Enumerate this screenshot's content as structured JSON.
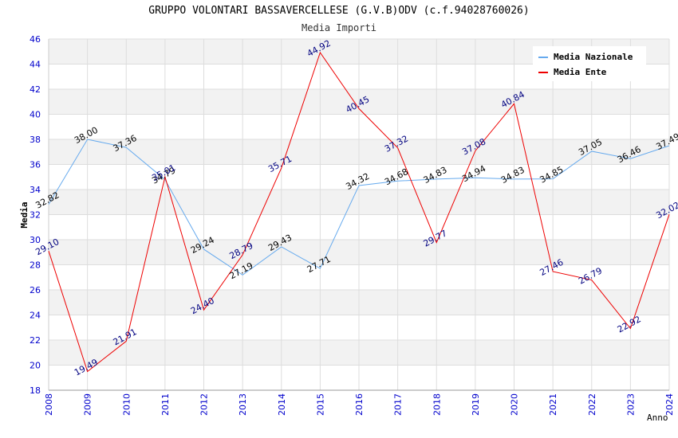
{
  "chart_data": {
    "type": "line",
    "title": "GRUPPO VOLONTARI BASSAVERCELLESE (G.V.B)ODV (c.f.94028760026)",
    "subtitle": "Media Importi",
    "xlabel": "Anno",
    "ylabel": "Media",
    "ylim": [
      18,
      46
    ],
    "yticks": [
      18,
      20,
      22,
      24,
      26,
      28,
      30,
      32,
      34,
      36,
      38,
      40,
      42,
      44,
      46
    ],
    "categories": [
      "2008",
      "2009",
      "2010",
      "2011",
      "2012",
      "2013",
      "2014",
      "2015",
      "2016",
      "2017",
      "2018",
      "2019",
      "2020",
      "2021",
      "2022",
      "2023",
      "2024"
    ],
    "grid": true,
    "legend_position": "top-right",
    "series": [
      {
        "name": "Media Nazionale",
        "color": "#66aaee",
        "values": [
          32.82,
          38.0,
          37.36,
          34.79,
          29.24,
          27.19,
          29.43,
          27.71,
          34.32,
          34.68,
          34.83,
          34.94,
          34.83,
          34.85,
          37.05,
          36.46,
          37.49
        ],
        "labels": [
          "32.82",
          "38.00",
          "37.36",
          "34.79",
          "29.24",
          "27.19",
          "29.43",
          "27.71",
          "34.32",
          "34.68",
          "34.83",
          "34.94",
          "34.83",
          "34.85",
          "37.05",
          "36.46",
          "37.49"
        ]
      },
      {
        "name": "Media Ente",
        "color": "#ee0000",
        "values": [
          29.1,
          19.49,
          21.91,
          35.01,
          24.4,
          28.79,
          35.71,
          44.92,
          40.45,
          37.32,
          29.77,
          37.08,
          40.84,
          27.46,
          26.79,
          22.92,
          32.02
        ],
        "labels": [
          "29.10",
          "19.49",
          "21.91",
          "35.01",
          "24.40",
          "28.79",
          "35.71",
          "44.92",
          "40.45",
          "37.32",
          "29.77",
          "37.08",
          "40.84",
          "27.46",
          "26.79",
          "22.92",
          "32.02"
        ]
      }
    ]
  }
}
